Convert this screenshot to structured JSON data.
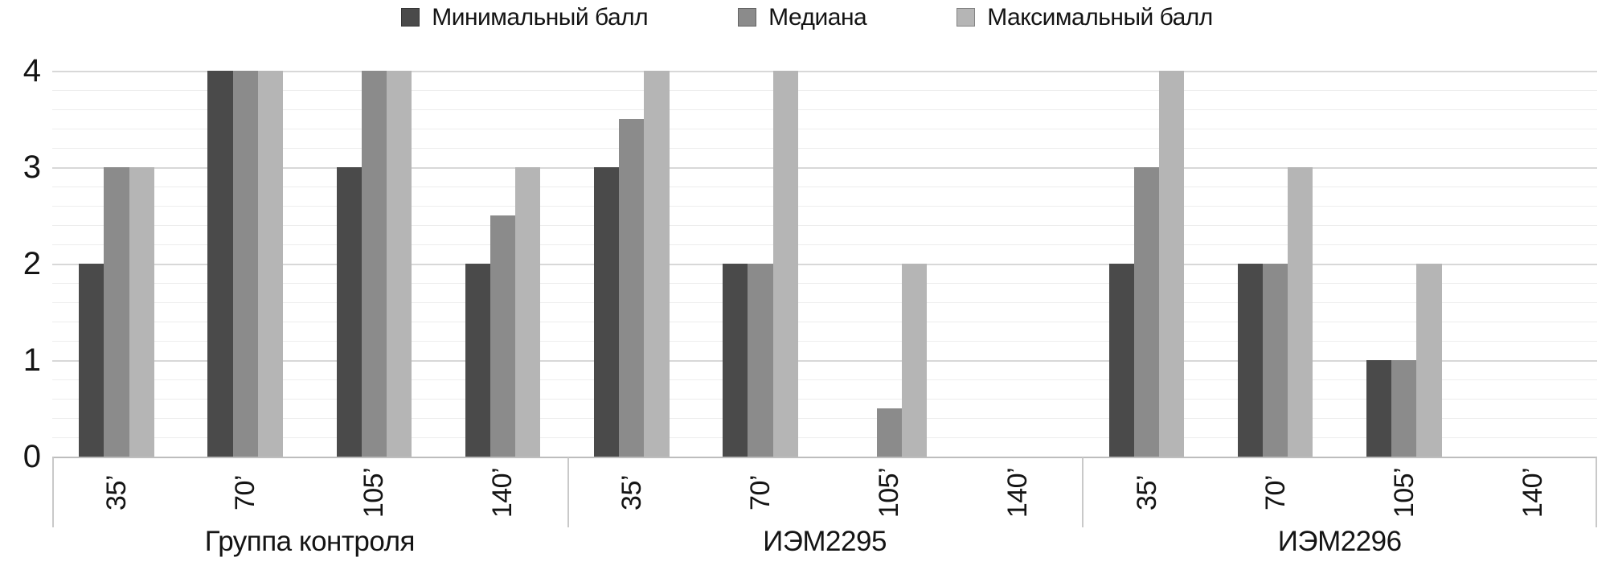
{
  "chart_data": {
    "type": "bar",
    "title": "",
    "xlabel": "",
    "ylabel": "",
    "ylim": [
      0,
      4
    ],
    "yticks": [
      0,
      1,
      2,
      3,
      4
    ],
    "ytick_labels": [
      "0",
      "1",
      "2",
      "3",
      "4"
    ],
    "minor_gridline_step": 0.2,
    "grid": true,
    "legend_position": "top",
    "series_names": [
      "Минимальный балл",
      "Медиана",
      "Максимальный балл"
    ],
    "series_colors": [
      "#4a4a4a",
      "#8b8b8b",
      "#b5b5b5"
    ],
    "categories_per_group": [
      "35’",
      "70’",
      "105’",
      "140’"
    ],
    "groups": [
      {
        "label": "Группа контроля",
        "series": [
          {
            "name": "Минимальный балл",
            "values": [
              2,
              4,
              3,
              2
            ]
          },
          {
            "name": "Медиана",
            "values": [
              3,
              4,
              4,
              2.5
            ]
          },
          {
            "name": "Максимальный балл",
            "values": [
              3,
              4,
              4,
              3
            ]
          }
        ]
      },
      {
        "label": "ИЭМ2295",
        "series": [
          {
            "name": "Минимальный балл",
            "values": [
              3,
              2,
              0,
              0
            ]
          },
          {
            "name": "Медиана",
            "values": [
              3.5,
              2,
              0.5,
              0
            ]
          },
          {
            "name": "Максимальный балл",
            "values": [
              4,
              4,
              2,
              0
            ]
          }
        ]
      },
      {
        "label": "ИЭМ2296",
        "series": [
          {
            "name": "Минимальный балл",
            "values": [
              2,
              2,
              1,
              0
            ]
          },
          {
            "name": "Медиана",
            "values": [
              3,
              2,
              1,
              0
            ]
          },
          {
            "name": "Максимальный балл",
            "values": [
              4,
              3,
              2,
              0
            ]
          }
        ]
      }
    ],
    "colors": {
      "axis_line": "#bdbdbd",
      "major_gridline": "#d8d8d8",
      "minor_gridline": "#ededed",
      "separator": "#c9c9c9",
      "text": "#141414",
      "background": "#ffffff"
    }
  }
}
